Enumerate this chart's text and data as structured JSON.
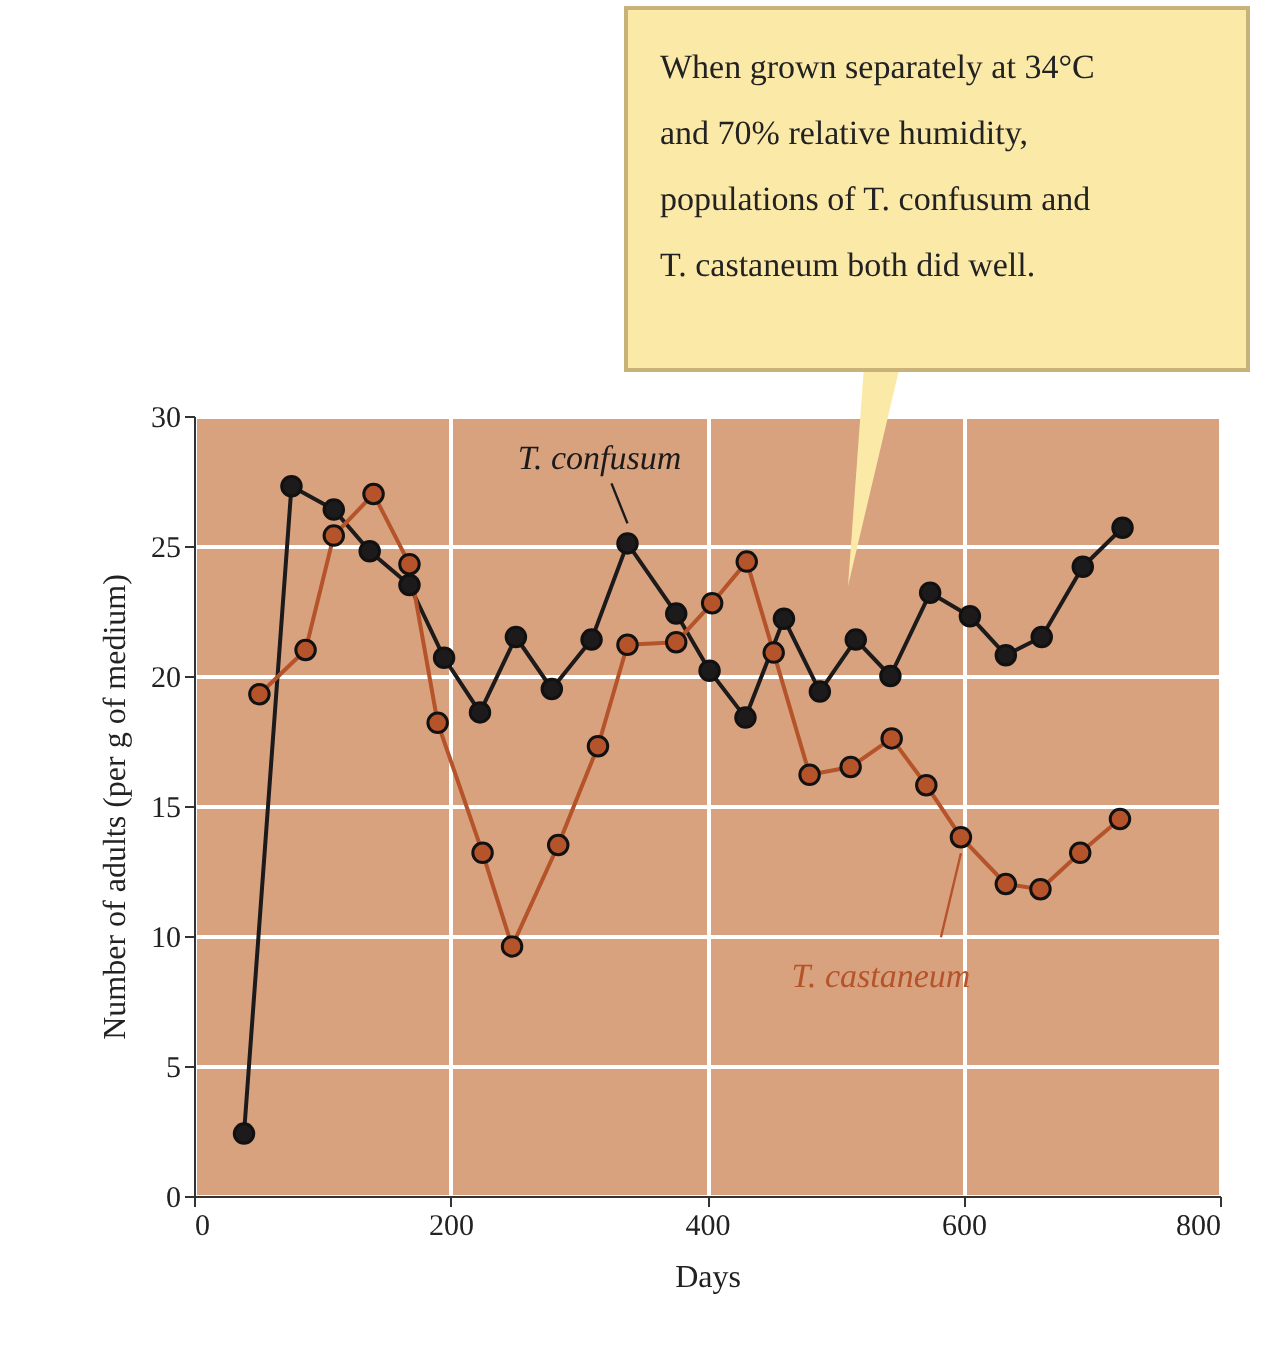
{
  "chart_data": {
    "type": "line",
    "xlabel": "Days",
    "ylabel": "Number of adults (per g of medium)",
    "xlim": [
      0,
      800
    ],
    "xticks": [
      0,
      200,
      400,
      600,
      800
    ],
    "ylim": [
      0,
      30
    ],
    "yticks": [
      0,
      5,
      10,
      15,
      20,
      25,
      30
    ],
    "grid": true,
    "marker": "circle",
    "legend": false,
    "series": [
      {
        "name": "T. confusum",
        "color": "#1c1a1a",
        "x": [
          39,
          76,
          109,
          137,
          168,
          195,
          223,
          251,
          279,
          310,
          338,
          376,
          402,
          430,
          460,
          488,
          516,
          543,
          574,
          605,
          633,
          661,
          693,
          724
        ],
        "values": [
          2.4,
          27.3,
          26.4,
          24.8,
          23.5,
          20.7,
          18.6,
          21.5,
          19.5,
          21.4,
          25.1,
          22.4,
          20.2,
          18.4,
          22.2,
          19.4,
          21.4,
          20.0,
          23.2,
          22.3,
          20.8,
          21.5,
          24.2,
          25.7
        ]
      },
      {
        "name": "T. castaneum",
        "color": "#b5532a",
        "x": [
          51,
          87,
          109,
          140,
          168,
          190,
          225,
          248,
          284,
          315,
          338,
          376,
          404,
          431,
          452,
          480,
          512,
          544,
          571,
          598,
          633,
          660,
          691,
          722
        ],
        "values": [
          19.3,
          21.0,
          25.4,
          27.0,
          24.3,
          18.2,
          13.2,
          9.6,
          13.5,
          17.3,
          21.2,
          21.3,
          22.8,
          24.4,
          20.9,
          16.2,
          16.5,
          17.6,
          15.8,
          13.8,
          12.0,
          11.8,
          13.2,
          14.5
        ]
      }
    ],
    "annotations": [
      "When grown separately at 34°C and 70% relative humidity, populations of T. confusum and T. castaneum both did well."
    ]
  }
}
